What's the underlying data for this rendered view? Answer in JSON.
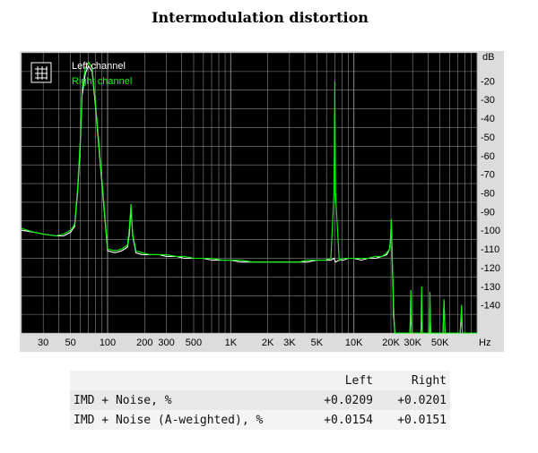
{
  "chart_data": {
    "type": "line",
    "title": "Intermodulation distortion",
    "x_scale": "log",
    "xlim": [
      20,
      100000
    ],
    "ylim": [
      -155,
      -5
    ],
    "grid": true,
    "colors": {
      "background": "#000000",
      "grid": "#8a8a8a",
      "left": "#ffffff",
      "right": "#00ff00",
      "axis_text": "#000000",
      "legend_left": "#ffffff",
      "legend_right": "#00ff00"
    },
    "x_unit": "Hz",
    "y_unit": "dB",
    "legend_location": "top-left",
    "x_ticks": [
      {
        "v": 30,
        "label": "30"
      },
      {
        "v": 50,
        "label": "50"
      },
      {
        "v": 100,
        "label": "100"
      },
      {
        "v": 200,
        "label": "200"
      },
      {
        "v": 300,
        "label": "300"
      },
      {
        "v": 500,
        "label": "500"
      },
      {
        "v": 1000,
        "label": "1K"
      },
      {
        "v": 2000,
        "label": "2K"
      },
      {
        "v": 3000,
        "label": "3K"
      },
      {
        "v": 5000,
        "label": "5K"
      },
      {
        "v": 10000,
        "label": "10K"
      },
      {
        "v": 20000,
        "label": "20K"
      },
      {
        "v": 30000,
        "label": "30K"
      },
      {
        "v": 50000,
        "label": "50K"
      }
    ],
    "y_ticks": [
      -20,
      -30,
      -40,
      -50,
      -60,
      -70,
      -80,
      -90,
      -100,
      -110,
      -120,
      -130,
      -140
    ],
    "series": [
      {
        "name": "Left channel",
        "x": [
          20,
          25,
          30,
          38,
          44,
          47,
          50,
          54,
          57,
          60,
          62,
          66,
          70,
          75,
          80,
          90,
          100,
          115,
          130,
          145,
          150,
          155,
          160,
          170,
          190,
          220,
          260,
          300,
          360,
          420,
          500,
          600,
          700,
          850,
          1000,
          1200,
          1500,
          1800,
          2200,
          2600,
          3000,
          3600,
          4200,
          5000,
          5800,
          6500,
          6900,
          7000,
          7100,
          7600,
          8200,
          9000,
          10000,
          11500,
          13000,
          15000,
          17000,
          18500,
          19500,
          19900,
          20100,
          20300,
          20500,
          20800,
          21000,
          21500,
          22000,
          23000,
          25000,
          27000,
          28500,
          29000,
          29500,
          31000,
          33000,
          35000,
          35500,
          36000,
          38000,
          40000,
          41000,
          41500,
          42000,
          45000,
          50000,
          53000,
          54000,
          55000,
          58000,
          62000,
          68000,
          73000,
          75000,
          76000,
          80000,
          85000,
          90000,
          100000
        ],
        "y": [
          -100,
          -101,
          -102,
          -103,
          -103,
          -102,
          -101,
          -98,
          -80,
          -55,
          -28,
          -16,
          -12,
          -15,
          -35,
          -75,
          -111,
          -112,
          -111,
          -109,
          -102,
          -88,
          -103,
          -112,
          -113,
          -113,
          -113,
          -114,
          -114,
          -115,
          -115,
          -115,
          -116,
          -116,
          -116,
          -117,
          -117,
          -117,
          -117,
          -117,
          -117,
          -117,
          -117,
          -116,
          -116,
          -116,
          -115,
          -116,
          -117,
          -116,
          -116,
          -115,
          -115,
          -116,
          -115,
          -115,
          -114,
          -113,
          -110,
          -104,
          -96,
          -104,
          -118,
          -130,
          -145,
          -155,
          -155,
          -155,
          -155,
          -155,
          -155,
          -145,
          -155,
          -155,
          -155,
          -155,
          -148,
          -155,
          -155,
          -155,
          -155,
          -140,
          -155,
          -155,
          -155,
          -155,
          -138,
          -155,
          -155,
          -155,
          -155,
          -155,
          -143,
          -155,
          -155,
          -155,
          -155,
          -155
        ]
      },
      {
        "name": "Right channel",
        "x": [
          20,
          25,
          30,
          38,
          44,
          47,
          50,
          54,
          57,
          60,
          62,
          66,
          70,
          75,
          80,
          90,
          100,
          115,
          130,
          145,
          150,
          155,
          160,
          170,
          190,
          220,
          260,
          300,
          360,
          420,
          500,
          600,
          700,
          850,
          1000,
          1200,
          1500,
          1800,
          2200,
          2600,
          3000,
          3600,
          4200,
          5000,
          5800,
          6500,
          6900,
          7000,
          7100,
          7600,
          8200,
          9000,
          10000,
          11500,
          13000,
          15000,
          17000,
          18500,
          19500,
          19900,
          20100,
          20300,
          20500,
          20800,
          21000,
          21500,
          22000,
          23000,
          25000,
          27000,
          28500,
          29000,
          29500,
          31000,
          33000,
          35000,
          35500,
          36000,
          38000,
          40000,
          41000,
          41500,
          42000,
          45000,
          50000,
          53000,
          54000,
          55000,
          58000,
          62000,
          68000,
          73000,
          75000,
          76000,
          80000,
          85000,
          90000,
          100000
        ],
        "y": [
          -99,
          -101,
          -102,
          -103,
          -102,
          -101,
          -100,
          -97,
          -78,
          -52,
          -25,
          -13,
          -10,
          -13,
          -33,
          -73,
          -110,
          -111,
          -110,
          -108,
          -99,
          -86,
          -102,
          -111,
          -112,
          -113,
          -113,
          -113,
          -114,
          -114,
          -115,
          -115,
          -115,
          -116,
          -116,
          -116,
          -117,
          -117,
          -117,
          -117,
          -117,
          -117,
          -116,
          -116,
          -116,
          -115,
          -80,
          -20,
          -80,
          -116,
          -115,
          -115,
          -115,
          -115,
          -115,
          -114,
          -114,
          -112,
          -110,
          -103,
          -94,
          -103,
          -116,
          -128,
          -140,
          -155,
          -155,
          -155,
          -155,
          -155,
          -155,
          -132,
          -155,
          -155,
          -155,
          -155,
          -130,
          -155,
          -155,
          -155,
          -155,
          -133,
          -155,
          -155,
          -155,
          -155,
          -137,
          -155,
          -155,
          -155,
          -155,
          -155,
          -140,
          -155,
          -155,
          -155,
          -155,
          -155
        ]
      }
    ]
  },
  "results_table": {
    "headers": [
      "",
      "Left",
      "Right"
    ],
    "rows": [
      {
        "label": "IMD + Noise, %",
        "left": "+0.0209",
        "right": "+0.0201"
      },
      {
        "label": "IMD + Noise (A-weighted), %",
        "left": "+0.0154",
        "right": "+0.0151"
      }
    ]
  }
}
